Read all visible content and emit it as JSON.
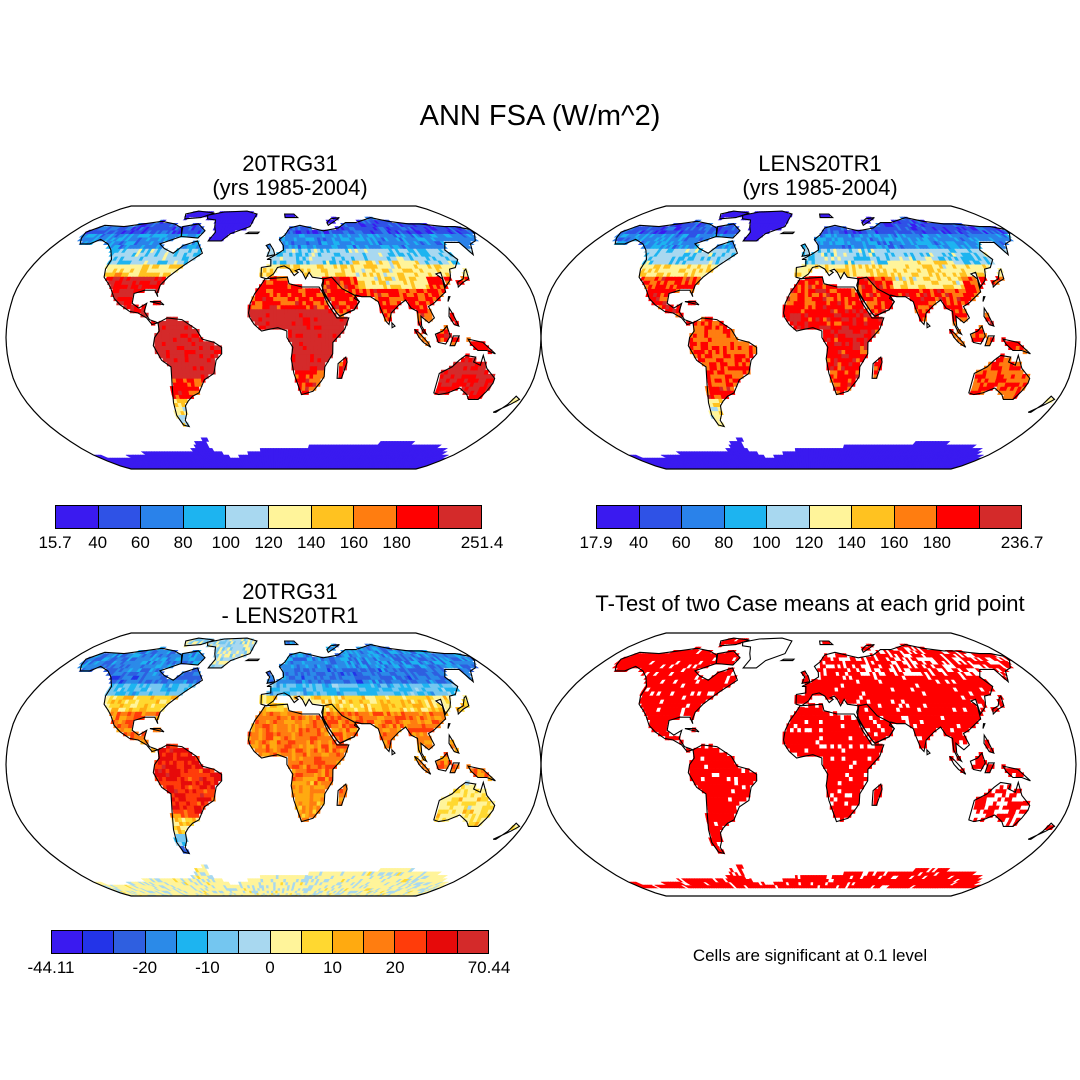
{
  "title": "ANN FSA (W/m^2)",
  "panels": [
    {
      "id": "p1",
      "title_lines": [
        "20TRG31",
        "(yrs 1985-2004)"
      ],
      "variant": "abs-a",
      "colorbar": {
        "colors": [
          "#3a1af0",
          "#2f52e6",
          "#2a82ea",
          "#1db4f0",
          "#a8d8f0",
          "#fff49a",
          "#ffc220",
          "#ff7d10",
          "#ff0000",
          "#d42a2a"
        ],
        "labels": [
          "15.7",
          "40",
          "60",
          "80",
          "100",
          "120",
          "140",
          "160",
          "180",
          "251.4"
        ]
      }
    },
    {
      "id": "p2",
      "title_lines": [
        "LENS20TR1",
        "(yrs 1985-2004)"
      ],
      "variant": "abs-b",
      "colorbar": {
        "colors": [
          "#3a1af0",
          "#2f52e6",
          "#2a82ea",
          "#1db4f0",
          "#a8d8f0",
          "#fff49a",
          "#ffc220",
          "#ff7d10",
          "#ff0000",
          "#d42a2a"
        ],
        "labels": [
          "17.9",
          "40",
          "60",
          "80",
          "100",
          "120",
          "140",
          "160",
          "180",
          "236.7"
        ]
      }
    },
    {
      "id": "p3",
      "title_lines": [
        "20TRG31",
        "- LENS20TR1"
      ],
      "variant": "diff",
      "colorbar": {
        "colors": [
          "#3a1af0",
          "#2334e8",
          "#2f5fe0",
          "#2b8ae8",
          "#1db4f0",
          "#74c6f0",
          "#a8d8f0",
          "#fff49a",
          "#ffd830",
          "#ffaa10",
          "#ff7d10",
          "#ff3c0a",
          "#e60a0a",
          "#d42a2a"
        ],
        "labels": [
          "-44.11",
          "-20",
          "-10",
          "0",
          "10",
          "20",
          "70.44"
        ]
      }
    },
    {
      "id": "p4",
      "title_lines": [
        "T-Test of two Case means at each grid point"
      ],
      "variant": "ttest",
      "note": "Cells are significant at 0.1 level"
    }
  ]
}
